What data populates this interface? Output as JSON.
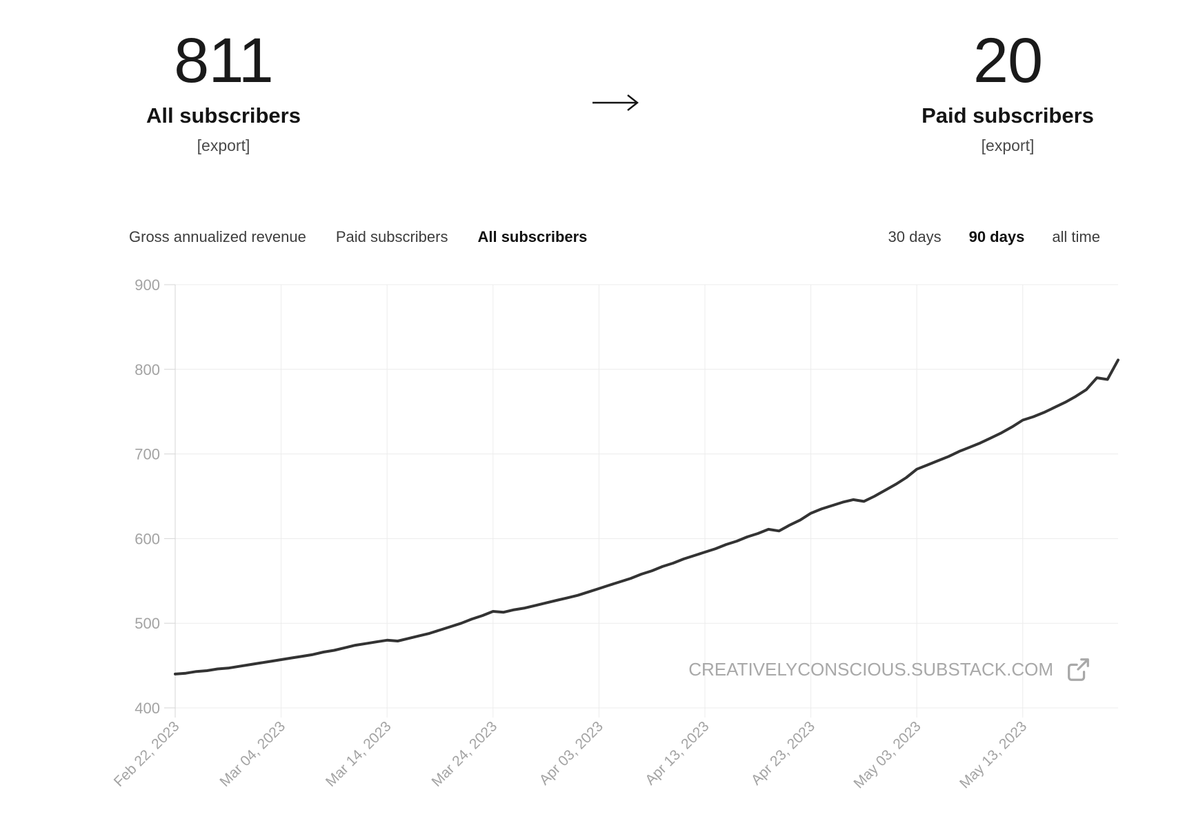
{
  "stats": {
    "all": {
      "value": "811",
      "label": "All subscribers",
      "export_label": "[export]"
    },
    "paid": {
      "value": "20",
      "label": "Paid subscribers",
      "export_label": "[export]"
    },
    "arrow_icon": "long-right-arrow"
  },
  "tabs": [
    {
      "label": "Gross annualized revenue",
      "active": false
    },
    {
      "label": "Paid subscribers",
      "active": false
    },
    {
      "label": "All subscribers",
      "active": true
    }
  ],
  "ranges": [
    {
      "label": "30 days",
      "active": false
    },
    {
      "label": "90 days",
      "active": true
    },
    {
      "label": "all time",
      "active": false
    }
  ],
  "watermark": {
    "text": "CREATIVELYCONSCIOUS.SUBSTACK.COM",
    "icon": "external-link"
  },
  "chart_data": {
    "type": "line",
    "title": "All subscribers over 90 days",
    "xlabel": "",
    "ylabel": "",
    "ylim": [
      400,
      900
    ],
    "y_ticks": [
      400,
      500,
      600,
      700,
      800,
      900
    ],
    "x_tick_labels": [
      "Feb 22, 2023",
      "Mar 04, 2023",
      "Mar 14, 2023",
      "Mar 24, 2023",
      "Apr 03, 2023",
      "Apr 13, 2023",
      "Apr 23, 2023",
      "May 03, 2023",
      "May 13, 2023"
    ],
    "x_tick_day_indices": [
      0,
      10,
      20,
      30,
      40,
      50,
      60,
      70,
      80
    ],
    "grid": true,
    "legend": "none",
    "series": [
      {
        "name": "All subscribers",
        "values": [
          440,
          441,
          443,
          444,
          446,
          447,
          449,
          451,
          453,
          455,
          457,
          459,
          461,
          463,
          466,
          468,
          471,
          474,
          476,
          478,
          480,
          479,
          482,
          485,
          488,
          492,
          496,
          500,
          505,
          509,
          514,
          513,
          516,
          518,
          521,
          524,
          527,
          530,
          533,
          537,
          541,
          545,
          549,
          553,
          558,
          562,
          567,
          571,
          576,
          580,
          584,
          588,
          593,
          597,
          602,
          606,
          611,
          609,
          616,
          622,
          630,
          635,
          639,
          643,
          646,
          644,
          650,
          657,
          664,
          672,
          682,
          687,
          692,
          697,
          703,
          708,
          713,
          719,
          725,
          732,
          740,
          744,
          749,
          755,
          761,
          768,
          776,
          790,
          788,
          811
        ]
      }
    ],
    "colors": {
      "line": "#333333",
      "grid": "#ececec",
      "axis": "#d6d6d6",
      "tick": "#d6d6d6",
      "label": "#a3a3a3"
    }
  }
}
